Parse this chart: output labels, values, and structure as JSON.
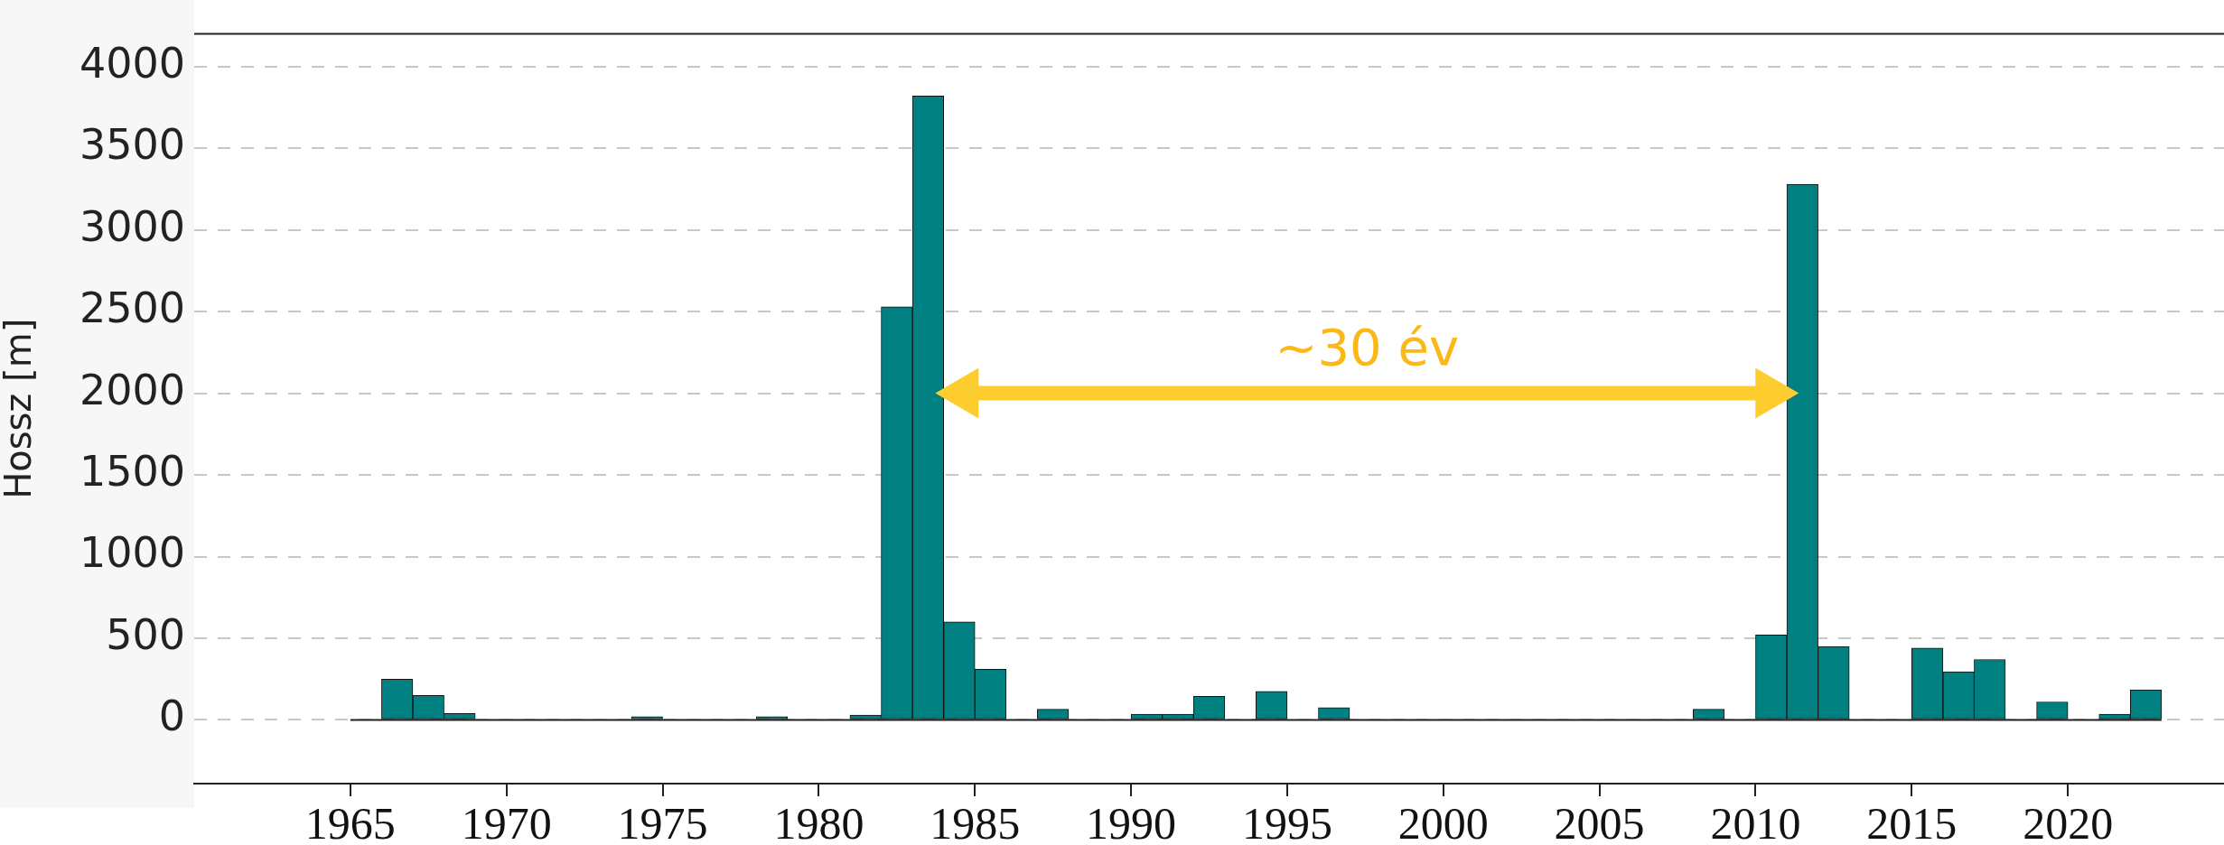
{
  "chart_data": {
    "type": "histogram",
    "ylabel": "Hossz [m]",
    "bins": [
      1965,
      1966,
      1967,
      1968,
      1969,
      1970,
      1971,
      1972,
      1973,
      1974,
      1975,
      1976,
      1977,
      1978,
      1979,
      1980,
      1981,
      1982,
      1983,
      1984,
      1985,
      1986,
      1987,
      1988,
      1989,
      1990,
      1991,
      1992,
      1993,
      1994,
      1995,
      1996,
      1997,
      1998,
      1999,
      2000,
      2001,
      2002,
      2003,
      2004,
      2005,
      2006,
      2007,
      2008,
      2009,
      2010,
      2011,
      2012,
      2013,
      2014,
      2015,
      2016,
      2017,
      2018,
      2019,
      2020,
      2021,
      2022,
      2023
    ],
    "values": [
      0,
      250,
      150,
      40,
      0,
      0,
      0,
      0,
      0,
      20,
      0,
      0,
      0,
      20,
      0,
      0,
      30,
      2530,
      3820,
      600,
      310,
      0,
      65,
      0,
      0,
      35,
      35,
      145,
      0,
      175,
      0,
      75,
      0,
      0,
      0,
      0,
      0,
      0,
      0,
      0,
      0,
      0,
      0,
      65,
      0,
      520,
      3280,
      450,
      0,
      0,
      440,
      295,
      370,
      0,
      110,
      0,
      35,
      185
    ],
    "color": "#008080",
    "xlim": [
      1960,
      2025
    ],
    "xticks": [
      1965,
      1970,
      1975,
      1980,
      1985,
      1990,
      1995,
      2000,
      2005,
      2010,
      2015,
      2020
    ],
    "ylim": [
      -390,
      4200
    ],
    "yticks": [
      0,
      500,
      1000,
      1500,
      2000,
      2500,
      3000,
      3500,
      4000
    ],
    "grid": "y",
    "legend": false,
    "annotations": [
      "~30 év"
    ]
  }
}
